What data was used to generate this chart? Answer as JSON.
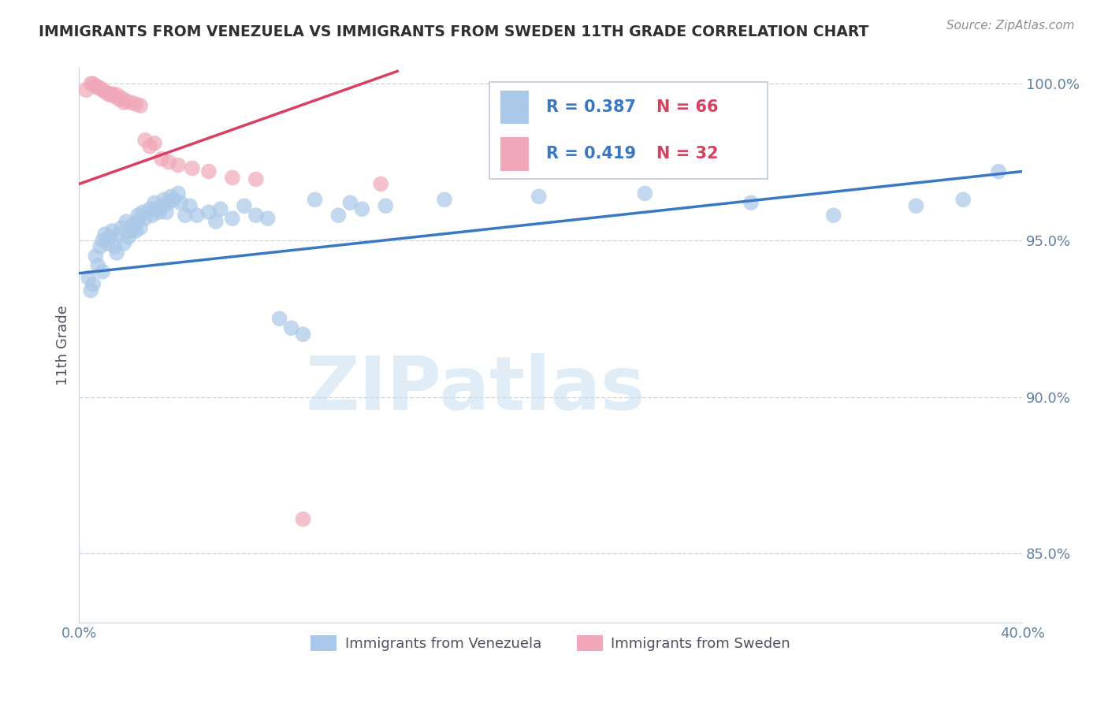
{
  "title": "IMMIGRANTS FROM VENEZUELA VS IMMIGRANTS FROM SWEDEN 11TH GRADE CORRELATION CHART",
  "source": "Source: ZipAtlas.com",
  "ylabel": "11th Grade",
  "x_min": 0.0,
  "x_max": 0.4,
  "y_min": 0.828,
  "y_max": 1.005,
  "x_tick_positions": [
    0.0,
    0.1,
    0.2,
    0.3,
    0.4
  ],
  "x_tick_labels": [
    "0.0%",
    "",
    "",
    "",
    "40.0%"
  ],
  "y_tick_positions": [
    0.85,
    0.9,
    0.95,
    1.0
  ],
  "y_tick_labels": [
    "85.0%",
    "90.0%",
    "95.0%",
    "100.0%"
  ],
  "legend_r_blue": "R = 0.387",
  "legend_n_blue": "N = 66",
  "legend_r_pink": "R = 0.419",
  "legend_n_pink": "N = 32",
  "legend_label_blue": "Immigrants from Venezuela",
  "legend_label_pink": "Immigrants from Sweden",
  "blue_color": "#aac8e8",
  "pink_color": "#f0a8b8",
  "trendline_blue_color": "#3a78c4",
  "trendline_pink_color": "#d84060",
  "legend_text_blue": "#3a78c4",
  "legend_text_pink": "#d84060",
  "watermark_color": "#c8ddf0",
  "watermark": "ZIPatlas",
  "blue_trend_x0": 0.0,
  "blue_trend_x1": 0.4,
  "blue_trend_y0": 0.9395,
  "blue_trend_y1": 0.972,
  "pink_trend_x0": 0.0,
  "pink_trend_x1": 0.135,
  "pink_trend_y0": 0.968,
  "pink_trend_y1": 1.004,
  "background_color": "#ffffff",
  "grid_color": "#d0d8e0",
  "title_color": "#303030",
  "axis_label_color": "#505060",
  "tick_color": "#6080a0"
}
